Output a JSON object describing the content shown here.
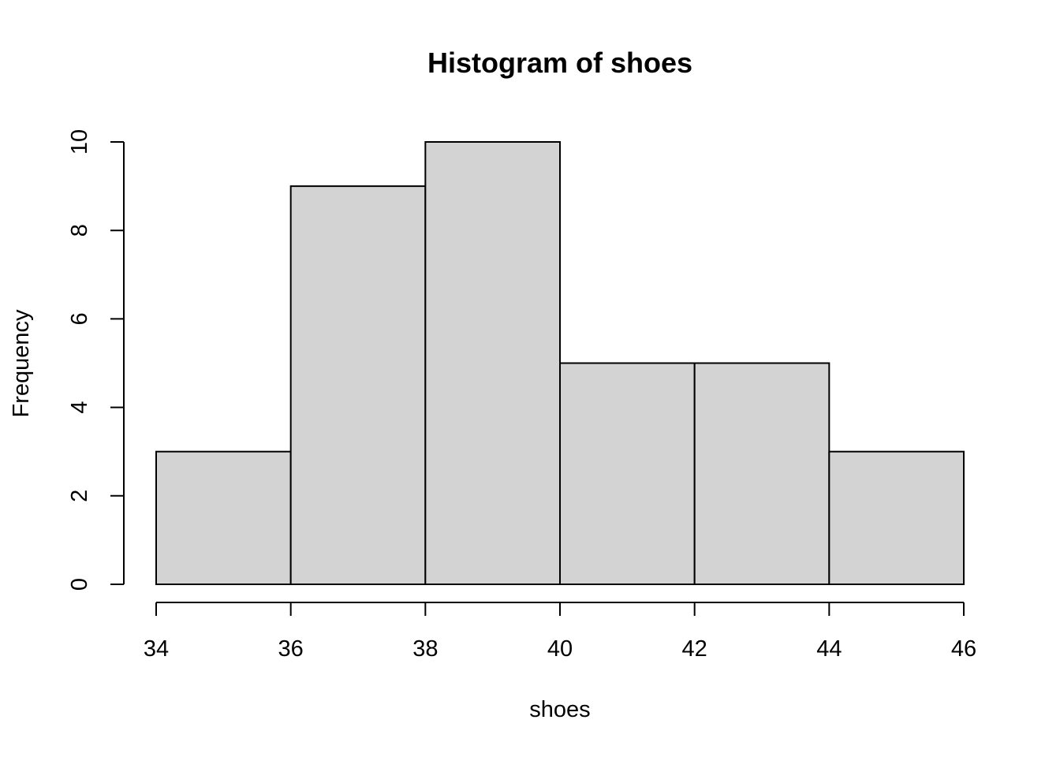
{
  "chart_data": {
    "type": "bar",
    "title": "Histogram of shoes",
    "xlabel": "shoes",
    "ylabel": "Frequency",
    "bins": [
      {
        "from": 34,
        "to": 36,
        "count": 3
      },
      {
        "from": 36,
        "to": 38,
        "count": 9
      },
      {
        "from": 38,
        "to": 40,
        "count": 10
      },
      {
        "from": 40,
        "to": 42,
        "count": 5
      },
      {
        "from": 42,
        "to": 44,
        "count": 5
      },
      {
        "from": 44,
        "to": 46,
        "count": 3
      }
    ],
    "xlim": [
      34,
      46
    ],
    "ylim": [
      0,
      10
    ],
    "x_ticks": [
      34,
      36,
      38,
      40,
      42,
      44,
      46
    ],
    "y_ticks": [
      0,
      2,
      4,
      6,
      8,
      10
    ],
    "grid": false,
    "bar_fill": "#d3d3d3",
    "bar_stroke": "#000000"
  }
}
